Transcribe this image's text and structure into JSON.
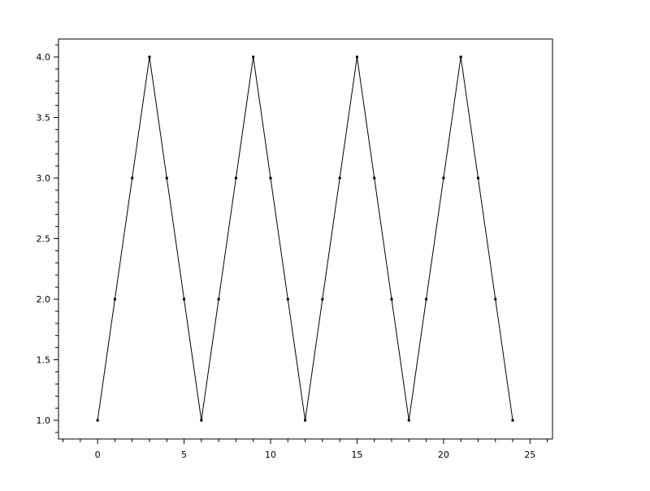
{
  "chart_data": {
    "type": "line",
    "title": "",
    "xlabel": "",
    "ylabel": "",
    "x": [
      0,
      1,
      2,
      3,
      4,
      5,
      6,
      7,
      8,
      9,
      10,
      11,
      12,
      13,
      14,
      15,
      16,
      17,
      18,
      19,
      20,
      21,
      22,
      23,
      24
    ],
    "series": [
      {
        "values": [
          1,
          2,
          3,
          4,
          3,
          2,
          1,
          2,
          3,
          4,
          3,
          2,
          1,
          2,
          3,
          4,
          3,
          2,
          1,
          2,
          3,
          4,
          3,
          2,
          1
        ],
        "color": "#000000",
        "marker": "dot"
      }
    ],
    "xlim": [
      -2.26,
      26.3
    ],
    "ylim": [
      0.846,
      4.148
    ],
    "xticks": [
      0,
      5,
      10,
      15,
      20,
      25
    ],
    "xtick_labels": [
      "0",
      "5",
      "10",
      "15",
      "20",
      "25"
    ],
    "yticks": [
      1.0,
      1.5,
      2.0,
      2.5,
      3.0,
      3.5,
      4.0
    ],
    "ytick_labels": [
      "1.0",
      "1.5",
      "2.0",
      "2.5",
      "3.0",
      "3.5",
      "4.0"
    ],
    "grid": false,
    "legend": "none"
  }
}
